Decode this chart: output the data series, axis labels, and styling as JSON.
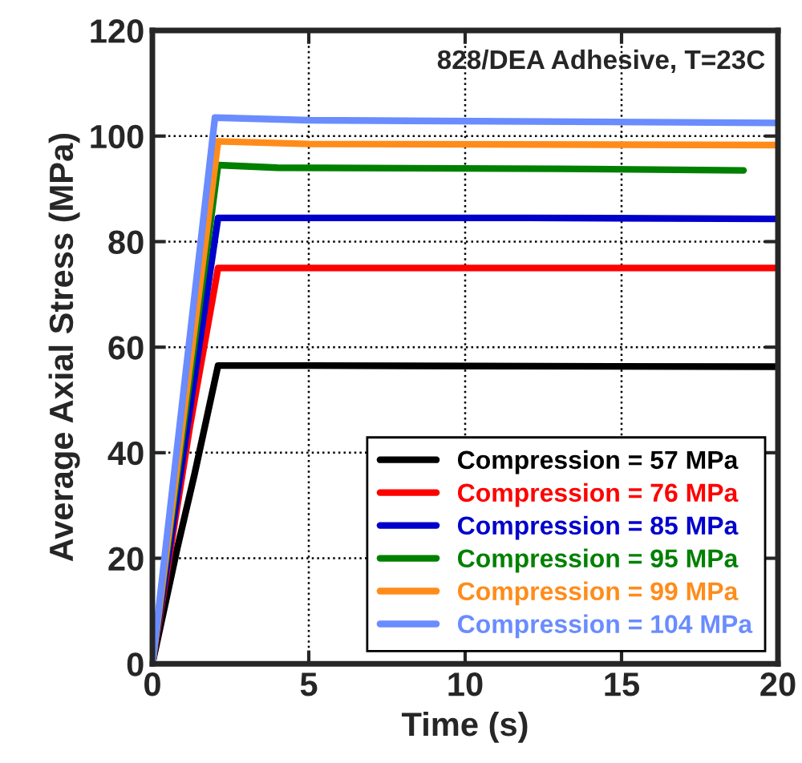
{
  "chart_data": {
    "type": "line",
    "xlabel": "Time (s)",
    "ylabel": "Average Axial Stress (MPa)",
    "annotations": [
      "828/DEA Adhesive, T=23C"
    ],
    "xlim": [
      0,
      20
    ],
    "ylim": [
      0,
      120
    ],
    "xticks": [
      0,
      5,
      10,
      15,
      20
    ],
    "yticks": [
      0,
      20,
      40,
      60,
      80,
      100,
      120
    ],
    "grid": true,
    "legend": "bottom right",
    "line_style": "solid",
    "marker": "none",
    "series": [
      {
        "name": "Compression = 57 MPa",
        "color": "#000000",
        "x": [
          0,
          0.8,
          1.35,
          2.1,
          5,
          20
        ],
        "values": [
          0,
          22,
          36,
          56.5,
          56.5,
          56.3
        ]
      },
      {
        "name": "Compression = 76 MPa",
        "color": "#ff0000",
        "x": [
          0,
          1.2,
          2.1,
          10,
          20
        ],
        "values": [
          0,
          45,
          75,
          75,
          75
        ]
      },
      {
        "name": "Compression = 85 MPa",
        "color": "#0000cc",
        "x": [
          0,
          2.1,
          12,
          20
        ],
        "values": [
          0,
          84.5,
          84.5,
          84.3
        ]
      },
      {
        "name": "Compression = 95 MPa",
        "color": "#008000",
        "x": [
          0,
          2.1,
          4,
          13,
          18.9
        ],
        "values": [
          0,
          94.5,
          94,
          93.8,
          93.5
        ]
      },
      {
        "name": "Compression = 99 MPa",
        "color": "#ff8c1a",
        "x": [
          0,
          2.1,
          5,
          20
        ],
        "values": [
          0,
          99,
          98.5,
          98.3
        ]
      },
      {
        "name": "Compression = 104 MPa",
        "color": "#6a8cff",
        "x": [
          0,
          2,
          5,
          20
        ],
        "values": [
          0,
          103.5,
          103,
          102.5
        ]
      }
    ]
  }
}
